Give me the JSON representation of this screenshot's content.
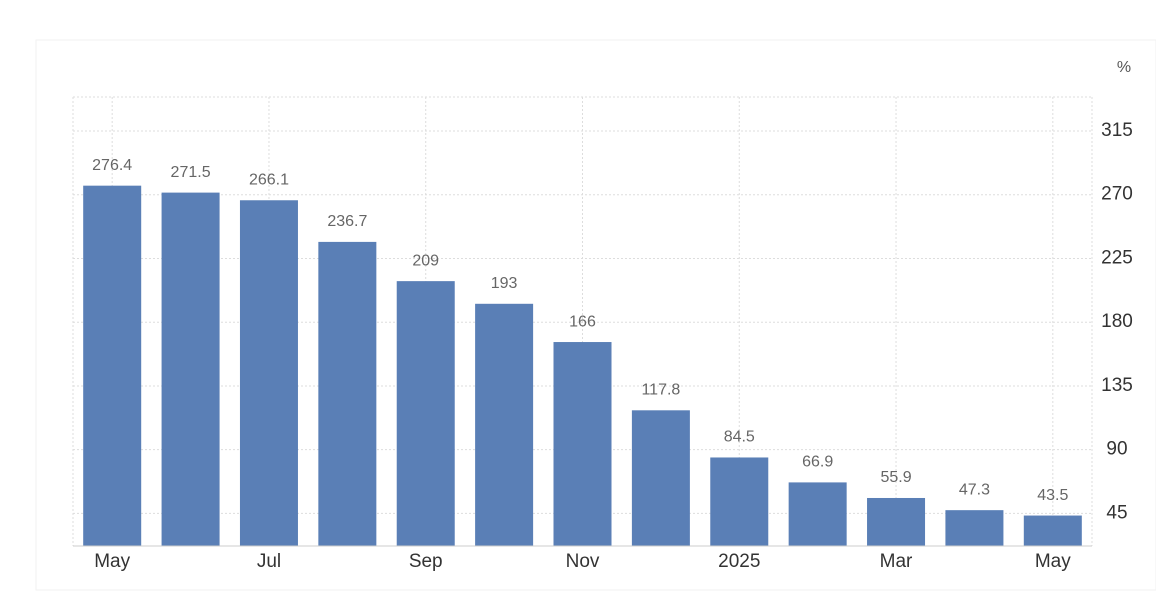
{
  "chart_data": {
    "type": "bar",
    "unit": "%",
    "categories": [
      "May",
      null,
      "Jul",
      null,
      "Sep",
      null,
      "Nov",
      null,
      "2025",
      null,
      "Mar",
      null,
      "May"
    ],
    "values": [
      276.4,
      271.5,
      266.1,
      236.7,
      209,
      193,
      166,
      117.8,
      84.5,
      66.9,
      55.9,
      47.3,
      43.5
    ],
    "color": "#5a7fb6",
    "ylim": [
      22,
      339
    ],
    "yticks": [
      45,
      90,
      135,
      180,
      225,
      270,
      315
    ],
    "grid": true
  }
}
